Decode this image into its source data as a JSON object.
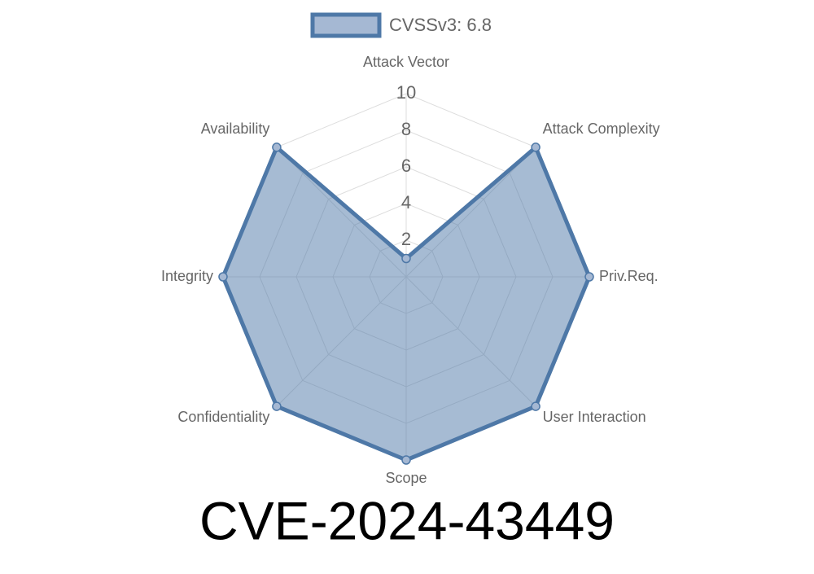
{
  "chart_data": {
    "type": "radar",
    "title": "CVE-2024-43449",
    "categories": [
      "Attack Vector",
      "Attack Complexity",
      "Priv.Req.",
      "User Interaction",
      "Scope",
      "Confidentiality",
      "Integrity",
      "Availability"
    ],
    "series": [
      {
        "name": "CVSSv3: 6.8",
        "color": "#4e78a7",
        "values": [
          1,
          10,
          10,
          10,
          10,
          10,
          10,
          10
        ]
      }
    ],
    "ylim": [
      0,
      10
    ],
    "yticks": [
      2,
      4,
      6,
      8,
      10
    ],
    "grid": true,
    "legend": "top"
  }
}
